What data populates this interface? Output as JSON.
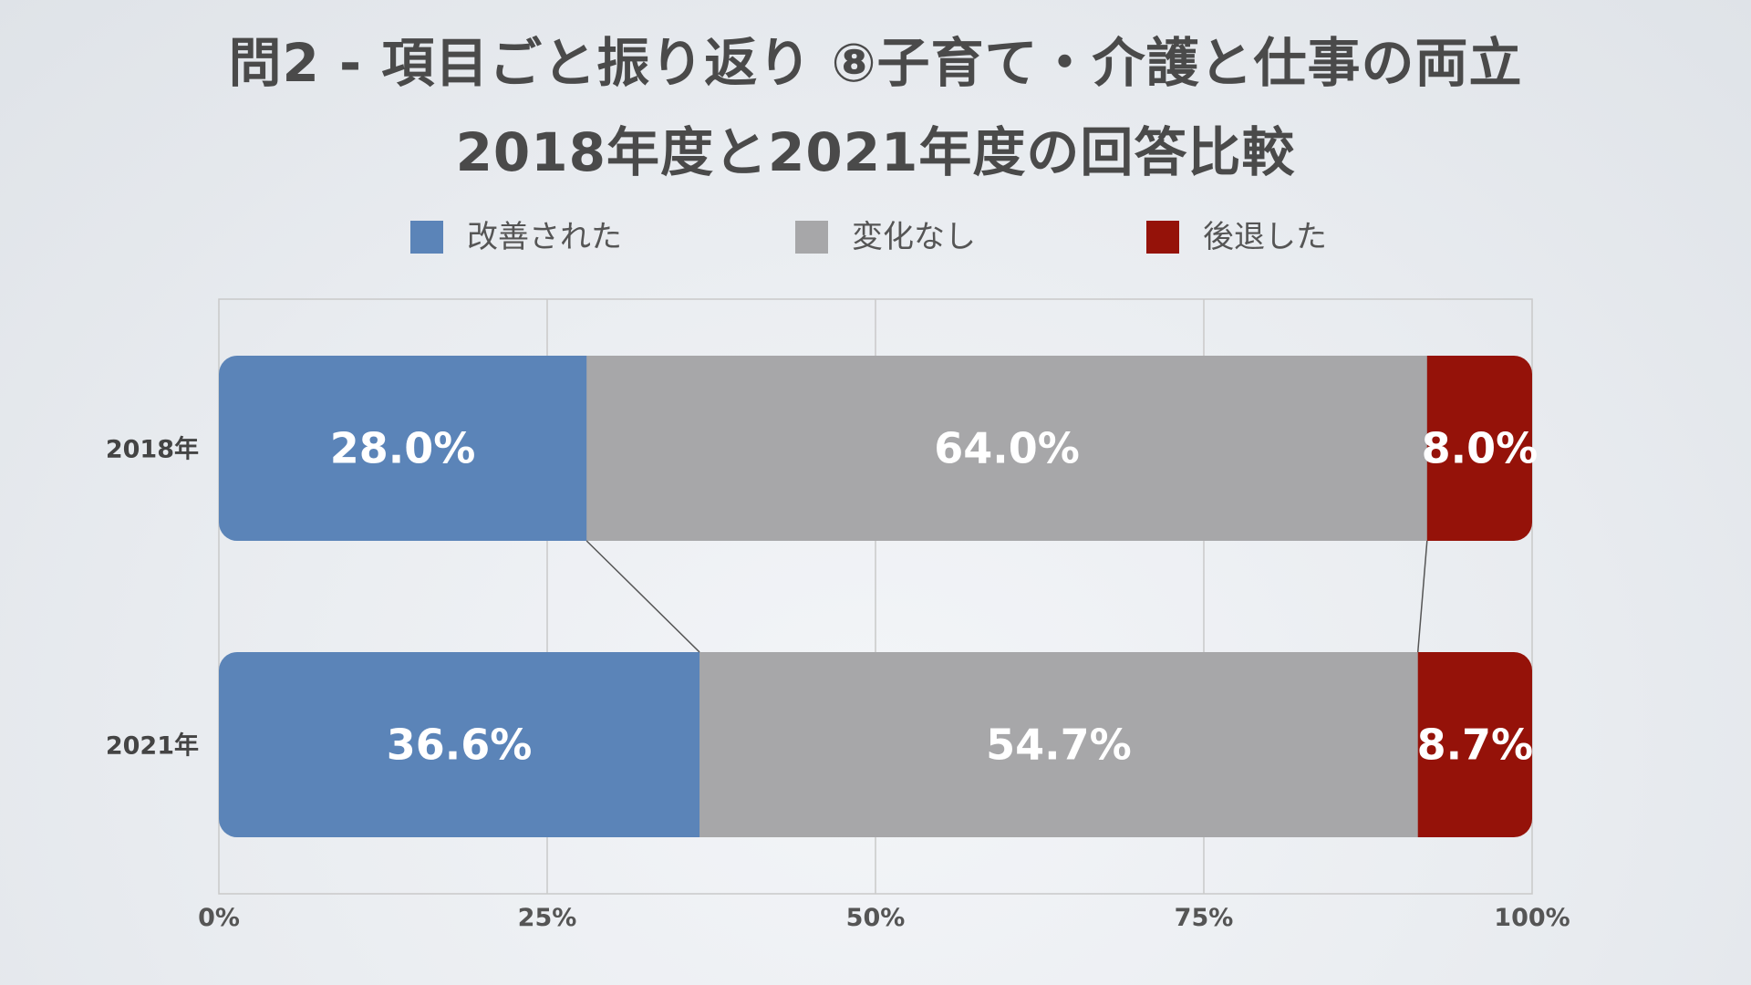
{
  "title": {
    "line1": "問2 - 項目ごと振り返り ⑧子育て・介護と仕事の両立",
    "line2": "2018年度と2021年度の回答比較"
  },
  "chart_data": {
    "type": "bar",
    "orientation": "horizontal",
    "stacked": "percent",
    "title": "問2 - 項目ごと振り返り ⑧子育て・介護と仕事の両立 2018年度と2021年度の回答比較",
    "categories": [
      "2018年",
      "2021年"
    ],
    "series": [
      {
        "name": "改善された",
        "values": [
          28.0,
          36.6
        ],
        "labels": [
          "28.0%",
          "36.6%"
        ],
        "color": "#5b84b8"
      },
      {
        "name": "変化なし",
        "values": [
          64.0,
          54.7
        ],
        "labels": [
          "64.0%",
          "54.7%"
        ],
        "color": "#a7a7a9"
      },
      {
        "name": "後退した",
        "values": [
          8.0,
          8.7
        ],
        "labels": [
          "8.0%",
          "8.7%"
        ],
        "color": "#951209"
      }
    ],
    "xlim": [
      0,
      100
    ],
    "xticks": [
      "0%",
      "25%",
      "50%",
      "75%",
      "100%"
    ],
    "grid": true,
    "legend_position": "top",
    "series_connector_lines": true
  }
}
